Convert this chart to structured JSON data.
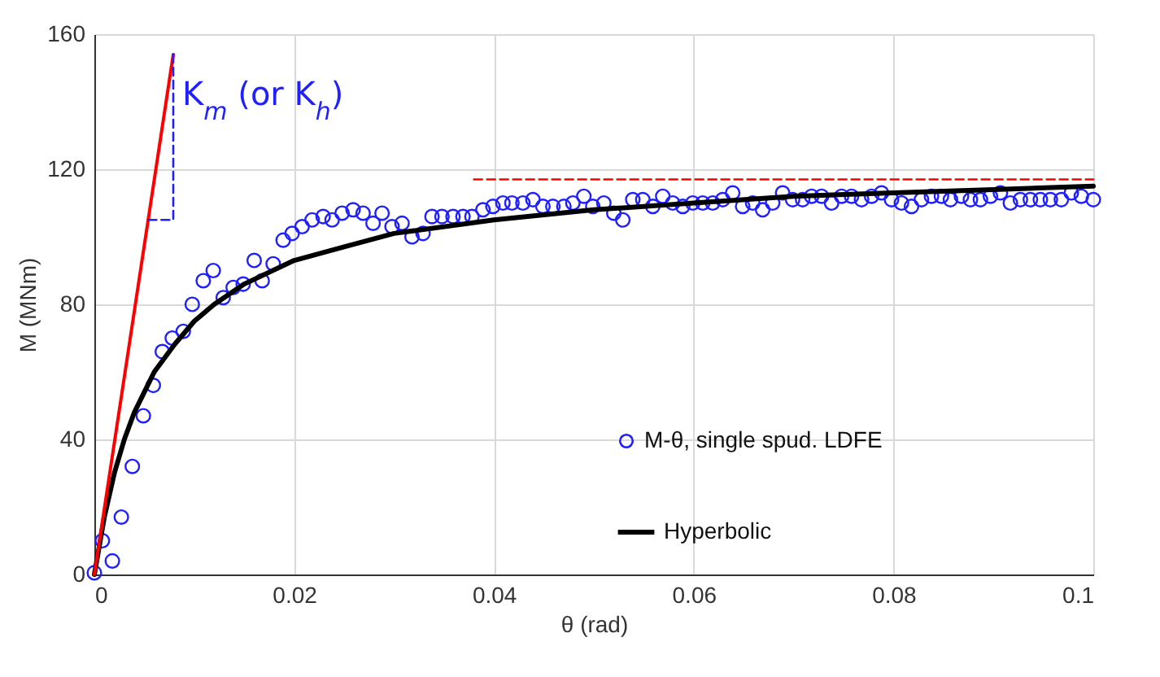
{
  "chart_data": {
    "type": "line",
    "xlabel": "θ (rad)",
    "ylabel": "M (MNm)",
    "xlim": [
      0,
      0.1
    ],
    "ylim": [
      0,
      160
    ],
    "xticks": [
      0,
      0.02,
      0.04,
      0.06,
      0.08,
      0.1
    ],
    "yticks": [
      0,
      40,
      80,
      120,
      160
    ],
    "grid": true,
    "legend": "bottom right",
    "annotations": [
      "K$_{m}$ (or K$_{h}$)"
    ],
    "series": [
      {
        "name": "M-θ, single spud. LDFE",
        "color": "#1f1fff",
        "type": "scatter",
        "marker": "circle",
        "x": [
          0,
          0.0008,
          0.0018,
          0.0027,
          0.0038,
          0.0049,
          0.0059,
          0.0068,
          0.0078,
          0.0089,
          0.0098,
          0.0109,
          0.0119,
          0.0129,
          0.0139,
          0.0149,
          0.016,
          0.0168,
          0.0179,
          0.0189,
          0.0198,
          0.0208,
          0.0218,
          0.0229,
          0.0238,
          0.0248,
          0.0259,
          0.0269,
          0.0279,
          0.0288,
          0.0298,
          0.0308,
          0.0318,
          0.0329,
          0.0338,
          0.0348,
          0.0359,
          0.0369,
          0.0378,
          0.0389,
          0.0399,
          0.0409,
          0.0418,
          0.0429,
          0.0439,
          0.0449,
          0.0459,
          0.047,
          0.0479,
          0.049,
          0.0499,
          0.051,
          0.052,
          0.0529,
          0.0539,
          0.0549,
          0.0559,
          0.0569,
          0.0579,
          0.0589,
          0.0599,
          0.0609,
          0.0619,
          0.0629,
          0.0639,
          0.0649,
          0.0659,
          0.0669,
          0.0679,
          0.0689,
          0.0699,
          0.0709,
          0.0718,
          0.0728,
          0.0738,
          0.0748,
          0.0758,
          0.0768,
          0.0778,
          0.0788,
          0.0798,
          0.0808,
          0.0818,
          0.0828,
          0.0838,
          0.0848,
          0.0857,
          0.0868,
          0.0877,
          0.0887,
          0.0897,
          0.0907,
          0.0917,
          0.0927,
          0.0937,
          0.0947,
          0.0957,
          0.0968,
          0.0978,
          0.0988,
          0.1
        ],
        "values": [
          0.5,
          10,
          4,
          17,
          32,
          47,
          56,
          66,
          70,
          72,
          80,
          87,
          90,
          82,
          85,
          86,
          93,
          87,
          92,
          99,
          101,
          103,
          105,
          106,
          105,
          107,
          108,
          107,
          104,
          107,
          103,
          104,
          100,
          101,
          106,
          106,
          106,
          106,
          106,
          108,
          109,
          110,
          110,
          110,
          111,
          109,
          109,
          109,
          110,
          112,
          109,
          110,
          107,
          105,
          111,
          111,
          109,
          112,
          110,
          109,
          110,
          110,
          110,
          111,
          113,
          109,
          110,
          108,
          110,
          113,
          111,
          111,
          112,
          112,
          110,
          112,
          112,
          111,
          112,
          113,
          111,
          110,
          109,
          111,
          112,
          112,
          111,
          112,
          111,
          111,
          112,
          113,
          110,
          111,
          111,
          111,
          111,
          111,
          113,
          112,
          111
        ]
      },
      {
        "name": "Hyperbolic",
        "color": "#000000",
        "x": [
          0,
          0.001,
          0.002,
          0.003,
          0.004,
          0.005,
          0.006,
          0.008,
          0.01,
          0.012,
          0.015,
          0.02,
          0.025,
          0.03,
          0.04,
          0.05,
          0.06,
          0.07,
          0.08,
          0.09,
          0.1
        ],
        "values": [
          0,
          17,
          30,
          40,
          48,
          54,
          60,
          68,
          75,
          80,
          86,
          93,
          97,
          101,
          105,
          108,
          110,
          112,
          113,
          114,
          115
        ]
      },
      {
        "color": "#ff0000",
        "x": [
          0,
          0.0079
        ],
        "values": [
          0,
          154
        ]
      },
      {
        "color": "#1f1fff",
        "type": "line",
        "line_style": "dashed",
        "x": [
          0.0054,
          0.0079,
          0.0079
        ],
        "values": [
          105,
          105,
          154
        ]
      },
      {
        "color": "#ff0000",
        "type": "line",
        "line_style": "dashed",
        "x": [
          0.038,
          0.1
        ],
        "values": [
          117,
          117
        ]
      }
    ]
  }
}
